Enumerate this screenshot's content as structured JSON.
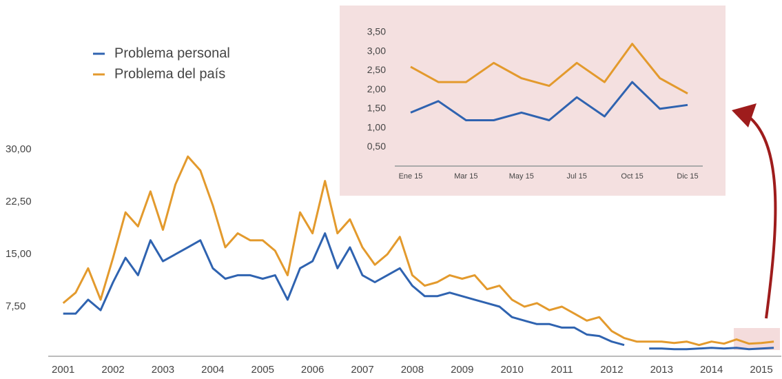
{
  "chart_data": [
    {
      "type": "line",
      "x": [
        2001.0,
        2001.25,
        2001.5,
        2001.75,
        2002.0,
        2002.25,
        2002.5,
        2002.75,
        2003.0,
        2003.25,
        2003.5,
        2003.75,
        2004.0,
        2004.25,
        2004.5,
        2004.75,
        2005.0,
        2005.25,
        2005.5,
        2005.75,
        2006.0,
        2006.25,
        2006.5,
        2006.75,
        2007.0,
        2007.25,
        2007.5,
        2007.75,
        2008.0,
        2008.25,
        2008.5,
        2008.75,
        2009.0,
        2009.25,
        2009.5,
        2009.75,
        2010.0,
        2010.25,
        2010.5,
        2010.75,
        2011.0,
        2011.25,
        2011.5,
        2011.75,
        2012.0,
        2012.25,
        2012.5,
        2012.75,
        2013.0,
        2013.25,
        2013.5,
        2013.75,
        2014.0,
        2014.25,
        2014.5,
        2014.75,
        2015.0,
        2015.25
      ],
      "series": [
        {
          "name": "Problema personal",
          "color": "#2f63b0",
          "values": [
            6.5,
            6.5,
            8.5,
            7,
            11,
            14.5,
            12,
            17,
            14,
            15,
            16,
            17,
            13,
            11.5,
            12,
            12,
            11.5,
            12,
            8.5,
            13,
            14,
            18,
            13,
            16,
            12,
            11,
            12,
            13,
            10.5,
            9,
            9,
            9.5,
            9,
            8.5,
            8,
            7.5,
            6,
            5.5,
            5,
            5,
            4.5,
            4.5,
            3.5,
            3.3,
            2.5,
            2,
            null,
            1.5,
            1.5,
            1.4,
            1.4,
            1.5,
            1.6,
            1.5,
            1.6,
            1.4,
            1.5,
            1.6
          ]
        },
        {
          "name": "Problema del país",
          "color": "#e39a2d",
          "values": [
            8,
            9.5,
            13,
            8.5,
            14.5,
            21,
            19,
            24,
            18.5,
            25,
            29,
            27,
            22,
            16,
            18,
            17,
            17,
            15.5,
            12,
            21,
            18,
            25.5,
            18,
            20,
            16,
            13.5,
            15,
            17.5,
            12,
            10.5,
            11,
            12,
            11.5,
            12,
            10,
            10.5,
            8.5,
            7.5,
            8,
            7,
            7.5,
            6.5,
            5.5,
            6,
            4,
            3,
            2.5,
            2.5,
            2.5,
            2.3,
            2.5,
            2,
            2.5,
            2.2,
            2.8,
            2.2,
            2.3,
            2.5
          ]
        }
      ],
      "xlim": [
        2000.7,
        2015.4
      ],
      "xticks": [
        2001,
        2002,
        2003,
        2004,
        2005,
        2006,
        2007,
        2008,
        2009,
        2010,
        2011,
        2012,
        2013,
        2014,
        2015
      ],
      "ylim": [
        0,
        30
      ],
      "yticks": [
        {
          "value": 7.5,
          "label": "7,50"
        },
        {
          "value": 15,
          "label": "15,00"
        },
        {
          "value": 22.5,
          "label": "22,50"
        },
        {
          "value": 30,
          "label": "30,00"
        }
      ],
      "legend": "top-left"
    },
    {
      "type": "line",
      "categories": [
        "Ene 15",
        null,
        "Mar 15",
        null,
        "May 15",
        null,
        "Jul 15",
        null,
        "Oct 15",
        null,
        "Dic 15"
      ],
      "series": [
        {
          "color": "#2f63b0",
          "values": [
            1.4,
            1.7,
            1.2,
            1.2,
            1.4,
            1.2,
            1.8,
            1.3,
            2.2,
            1.5,
            1.6
          ]
        },
        {
          "color": "#e39a2d",
          "values": [
            2.6,
            2.2,
            2.2,
            2.7,
            2.3,
            2.1,
            2.7,
            2.2,
            3.2,
            2.3,
            1.9
          ]
        }
      ],
      "ylim": [
        0,
        3.5
      ],
      "yticks": [
        {
          "value": 0.5,
          "label": "0,50"
        },
        {
          "value": 1,
          "label": "1,00"
        },
        {
          "value": 1.5,
          "label": "1,50"
        },
        {
          "value": 2,
          "label": "2,00"
        },
        {
          "value": 2.5,
          "label": "2,50"
        },
        {
          "value": 3,
          "label": "3,00"
        },
        {
          "value": 3.5,
          "label": "3,50"
        }
      ]
    }
  ]
}
